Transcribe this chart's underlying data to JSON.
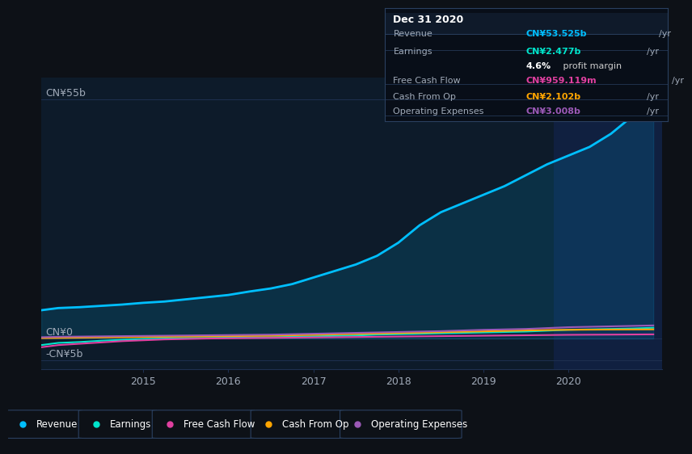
{
  "bg_color": "#0d1117",
  "plot_bg_color": "#0d1b2a",
  "highlight_bg_color": "#102040",
  "grid_color": "#1e3050",
  "text_color": "#a0aab8",
  "title_text_color": "#ffffff",
  "infobox_bg": "#080e18",
  "infobox_border": "#2a4060",
  "years": [
    2013.8,
    2014.0,
    2014.25,
    2014.5,
    2014.75,
    2015.0,
    2015.25,
    2015.5,
    2015.75,
    2016.0,
    2016.25,
    2016.5,
    2016.75,
    2017.0,
    2017.25,
    2017.5,
    2017.75,
    2018.0,
    2018.25,
    2018.5,
    2018.75,
    2019.0,
    2019.25,
    2019.5,
    2019.75,
    2020.0,
    2020.25,
    2020.5,
    2020.75,
    2021.0
  ],
  "revenue": [
    6500000000.0,
    7000000000.0,
    7200000000.0,
    7500000000.0,
    7800000000.0,
    8200000000.0,
    8500000000.0,
    9000000000.0,
    9500000000.0,
    10000000000.0,
    10800000000.0,
    11500000000.0,
    12500000000.0,
    14000000000.0,
    15500000000.0,
    17000000000.0,
    19000000000.0,
    22000000000.0,
    26000000000.0,
    29000000000.0,
    31000000000.0,
    33000000000.0,
    35000000000.0,
    37500000000.0,
    40000000000.0,
    42000000000.0,
    44000000000.0,
    47000000000.0,
    51000000000.0,
    54000000000.0
  ],
  "earnings": [
    -1500000000.0,
    -1000000000.0,
    -800000000.0,
    -500000000.0,
    -300000000.0,
    -100000000.0,
    0.0,
    100000000.0,
    150000000.0,
    200000000.0,
    250000000.0,
    300000000.0,
    400000000.0,
    500000000.0,
    600000000.0,
    700000000.0,
    900000000.0,
    1000000000.0,
    1100000000.0,
    1200000000.0,
    1300000000.0,
    1400000000.0,
    1500000000.0,
    1600000000.0,
    1800000000.0,
    2000000000.0,
    2100000000.0,
    2200000000.0,
    2300000000.0,
    2477000000.0
  ],
  "free_cash_flow": [
    -2000000000.0,
    -1500000000.0,
    -1200000000.0,
    -900000000.0,
    -600000000.0,
    -400000000.0,
    -200000000.0,
    -100000000.0,
    0.0,
    50000000.0,
    100000000.0,
    150000000.0,
    200000000.0,
    250000000.0,
    300000000.0,
    350000000.0,
    400000000.0,
    450000000.0,
    500000000.0,
    550000000.0,
    600000000.0,
    650000000.0,
    700000000.0,
    750000000.0,
    800000000.0,
    850000000.0,
    880000000.0,
    900000000.0,
    930000000.0,
    959000000.0
  ],
  "cash_from_op": [
    100000000.0,
    150000000.0,
    200000000.0,
    250000000.0,
    300000000.0,
    350000000.0,
    400000000.0,
    450000000.0,
    500000000.0,
    550000000.0,
    600000000.0,
    650000000.0,
    750000000.0,
    850000000.0,
    950000000.0,
    1050000000.0,
    1150000000.0,
    1250000000.0,
    1350000000.0,
    1450000000.0,
    1550000000.0,
    1650000000.0,
    1750000000.0,
    1850000000.0,
    1950000000.0,
    2000000000.0,
    2040000000.0,
    2070000000.0,
    2090000000.0,
    2102000000.0
  ],
  "operating_expenses": [
    300000000.0,
    400000000.0,
    450000000.0,
    500000000.0,
    550000000.0,
    600000000.0,
    650000000.0,
    700000000.0,
    750000000.0,
    800000000.0,
    850000000.0,
    900000000.0,
    1000000000.0,
    1100000000.0,
    1200000000.0,
    1300000000.0,
    1400000000.0,
    1500000000.0,
    1600000000.0,
    1700000000.0,
    1850000000.0,
    2000000000.0,
    2100000000.0,
    2200000000.0,
    2400000000.0,
    2600000000.0,
    2700000000.0,
    2800000000.0,
    2900000000.0,
    3008000000.0
  ],
  "revenue_color": "#00bfff",
  "earnings_color": "#00e5cc",
  "free_cash_flow_color": "#e040a0",
  "cash_from_op_color": "#ffa500",
  "operating_expenses_color": "#9b59b6",
  "highlight_start": 2019.83,
  "xmin": 2013.8,
  "xmax": 2021.1,
  "ylim_min": -7000000000.0,
  "ylim_max": 60000000000.0,
  "x_ticks": [
    2015,
    2016,
    2017,
    2018,
    2019,
    2020
  ],
  "legend_items": [
    "Revenue",
    "Earnings",
    "Free Cash Flow",
    "Cash From Op",
    "Operating Expenses"
  ],
  "legend_colors": [
    "#00bfff",
    "#00e5cc",
    "#e040a0",
    "#ffa500",
    "#9b59b6"
  ],
  "infobox": {
    "title": "Dec 31 2020",
    "rows": [
      {
        "label": "Revenue",
        "value": "CN¥53.525b /yr",
        "color": "#00bfff",
        "sep_after": true
      },
      {
        "label": "Earnings",
        "value": "CN¥2.477b /yr",
        "color": "#00e5cc",
        "sep_after": false
      },
      {
        "label": "",
        "value": "4.6% profit margin",
        "color": "#cccccc",
        "sep_after": true
      },
      {
        "label": "Free Cash Flow",
        "value": "CN¥959.119m /yr",
        "color": "#e040a0",
        "sep_after": true
      },
      {
        "label": "Cash From Op",
        "value": "CN¥2.102b /yr",
        "color": "#ffa500",
        "sep_after": true
      },
      {
        "label": "Operating Expenses",
        "value": "CN¥3.008b /yr",
        "color": "#9b59b6",
        "sep_after": false
      }
    ]
  }
}
